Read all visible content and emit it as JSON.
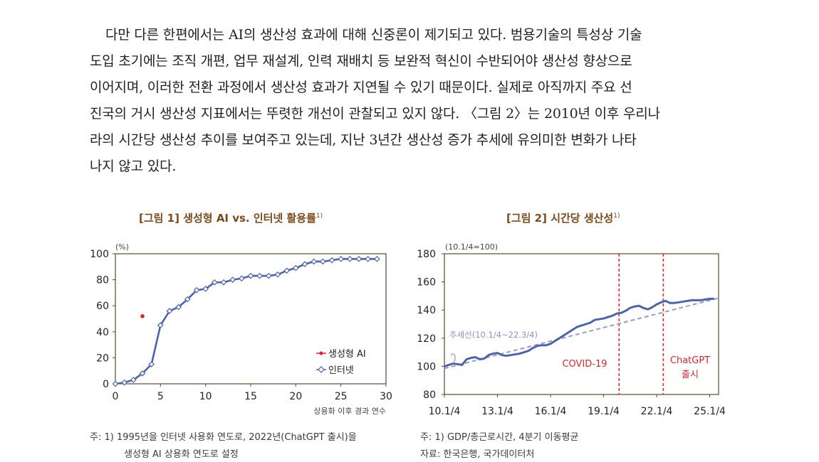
{
  "paragraph": [
    "다만 다른 한편에서는 AI의 생산성 효과에 대해 신중론이 제기되고 있다. 범용기술의 특성상 기술",
    "도입 초기에는 조직 개편, 업무 재설계, 인력 재배치 등 보완적 혁신이 수반되어야 생산성 향상으로",
    "이어지며, 이러한 전환 과정에서 생산성 효과가 지연될 수 있기 때문이다. 실제로 아직까지 주요 선",
    "진국의 거시 생산성 지표에서는 뚜렷한 개선이 관찰되고 있지 않다. 〈그림 2〉는 2010년 이후 우리나",
    "라의 시간당 생산성 추이를 보여주고 있는데, 지난 3년간 생산성 증가 추세에 유의미한 변화가 나타",
    "나지 않고 있다."
  ],
  "figure1": {
    "title": "[그림 1] 생성형 AI vs. 인터넷 활용률",
    "title_sup": "1)"
  },
  "figure2": {
    "title": "[그림 2] 시간당 생산성",
    "title_sup": "1)"
  },
  "notes": {
    "fig1_line1": "주: 1) 1995년을 인터넷 사용화 연도로, 2022년(ChatGPT 출시)을",
    "fig1_line2": "생성형 AI 상용화 연도로 설정",
    "fig2_line1": "주: 1) GDP/총근로시간, 4분기 이동평균",
    "fig2_line2": "자료: 한국은행, 국가데이터처"
  },
  "colors": {
    "line": "#4a64b0",
    "trend": "#9a9ad0",
    "genai": "#e1242b",
    "covid": "#e1242b",
    "frame": "#5a4a2a"
  },
  "chart_data": [
    {
      "type": "line",
      "ylabel": "(%)",
      "xlabel": "상용화 이후 경과 연수",
      "xlim": [
        0,
        30
      ],
      "ylim": [
        0,
        100
      ],
      "xticks": [
        0,
        5,
        10,
        15,
        20,
        25,
        30
      ],
      "yticks": [
        0,
        20,
        40,
        60,
        80,
        100
      ],
      "legend_position": "bottom-right",
      "grid": false,
      "series": [
        {
          "name": "생성형 AI",
          "marker": "dot",
          "x": [
            3
          ],
          "y": [
            52
          ]
        },
        {
          "name": "인터넷",
          "marker": "diamond",
          "x": [
            0,
            1,
            2,
            3,
            4,
            5,
            6,
            7,
            8,
            9,
            10,
            11,
            12,
            13,
            14,
            15,
            16,
            17,
            18,
            19,
            20,
            21,
            22,
            23,
            24,
            25,
            26,
            27,
            28,
            29
          ],
          "y": [
            0,
            1,
            3,
            8,
            15,
            45,
            56,
            59,
            65,
            72,
            73,
            78,
            78,
            80,
            81,
            83,
            83,
            83,
            84,
            87,
            89,
            92,
            94,
            94,
            95,
            96,
            96,
            96,
            96,
            96
          ]
        }
      ]
    },
    {
      "type": "line",
      "ylabel": "(10.1/4=100)",
      "xlim": [
        0,
        62
      ],
      "ylim": [
        80,
        180
      ],
      "xtick_labels": [
        "10.1/4",
        "13.1/4",
        "16.1/4",
        "19.1/4",
        "22.1/4",
        "25.1/4"
      ],
      "xtick_positions": [
        0,
        12,
        24,
        36,
        48,
        60
      ],
      "yticks": [
        80,
        100,
        120,
        140,
        160,
        180
      ],
      "grid": false,
      "series": [
        {
          "name": "시간당 생산성",
          "x": [
            0,
            1,
            2,
            3,
            4,
            5,
            6,
            7,
            8,
            9,
            10,
            11,
            12,
            13,
            14,
            15,
            16,
            17,
            18,
            19,
            20,
            21,
            22,
            23,
            24,
            25,
            26,
            27,
            28,
            29,
            30,
            31,
            32,
            33,
            34,
            35,
            36,
            37,
            38,
            39,
            40,
            41,
            42,
            43,
            44,
            45,
            46,
            47,
            48,
            49,
            50,
            51,
            52,
            53,
            54,
            55,
            56,
            57,
            58,
            59,
            60,
            61
          ],
          "y": [
            100,
            101,
            102,
            101.5,
            101,
            105,
            106,
            106.5,
            105,
            105.5,
            108,
            109,
            109.5,
            108,
            107.5,
            108,
            108.5,
            109,
            110,
            111,
            113,
            114.5,
            115,
            115,
            116,
            118,
            120,
            122,
            124,
            126,
            128,
            129,
            130,
            131,
            133,
            133.5,
            134,
            135,
            136,
            137.5,
            138,
            139.5,
            141.5,
            142.5,
            143,
            141.5,
            140.5,
            142,
            144,
            145.5,
            146.5,
            145,
            145,
            145.5,
            146,
            146.5,
            147,
            147,
            147,
            147.5,
            148,
            148
          ]
        },
        {
          "name": "추세선(10.1/4~22.3/4)",
          "x": [
            0,
            62
          ],
          "y": [
            98.5,
            148.5
          ]
        }
      ],
      "annotations": [
        {
          "text": "추세선(10.1/4~22.3/4)",
          "x": 3,
          "y": 123
        },
        {
          "text": "COVID-19",
          "x": 39.5
        },
        {
          "text": "ChatGPT 출시",
          "x": 49.5
        }
      ],
      "vlines": [
        39.5,
        49.5
      ]
    }
  ],
  "chart_text": {
    "fig1_unit": "(%)",
    "fig1_xlabel": "상용화 이후 경과 연수",
    "fig1_legend_genai": "생성형 AI",
    "fig1_legend_internet": "인터넷",
    "fig2_unit": "(10.1/4=100)",
    "fig2_trend_label": "추세선(10.1/4~22.3/4)",
    "fig2_covid_label": "COVID-19",
    "fig2_chatgpt_line1": "ChatGPT",
    "fig2_chatgpt_line2": "출시"
  }
}
